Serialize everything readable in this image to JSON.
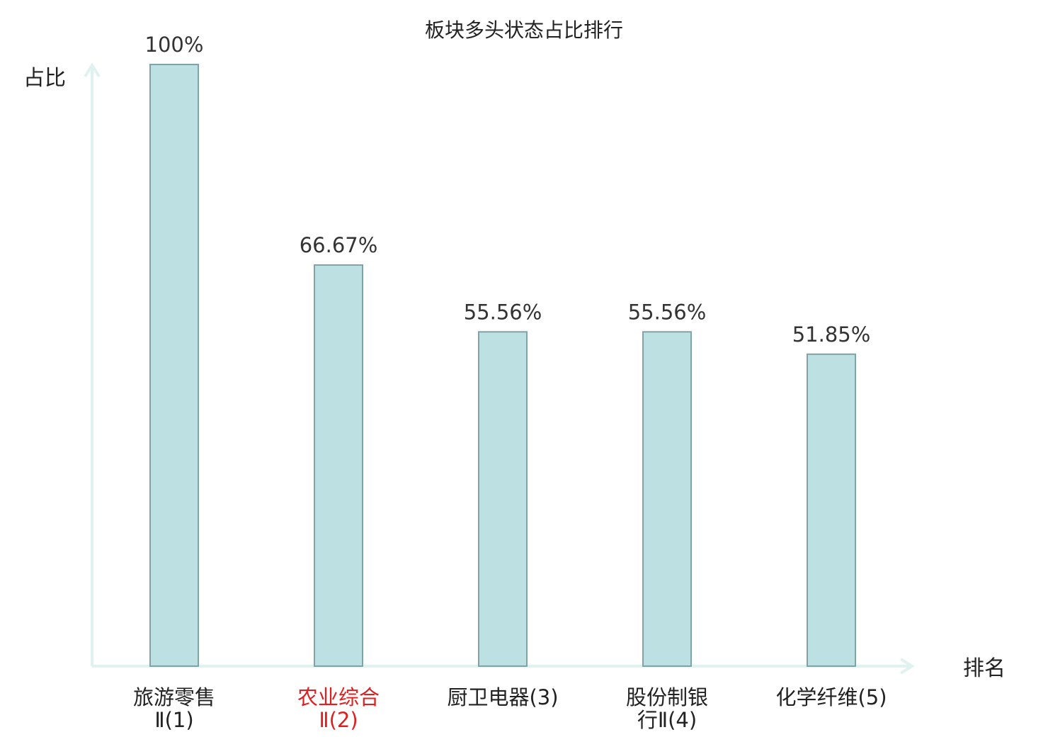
{
  "chart_data": {
    "type": "bar",
    "title": "板块多头状态占比排行",
    "ylabel": "占比",
    "xlabel": "排名",
    "categories": [
      {
        "lines": [
          "旅游零售",
          "Ⅱ(1)"
        ],
        "rank_suffix_line": 1,
        "highlight": false
      },
      {
        "lines": [
          "农业综合",
          "Ⅱ(2)"
        ],
        "rank_suffix_line": 1,
        "highlight": true
      },
      {
        "lines": [
          "厨卫电器(3)"
        ],
        "rank_suffix_line": 0,
        "highlight": false
      },
      {
        "lines": [
          "股份制银",
          "行Ⅱ(4)"
        ],
        "rank_suffix_line": 1,
        "highlight": false
      },
      {
        "lines": [
          "化学纤维(5)"
        ],
        "rank_suffix_line": 0,
        "highlight": false
      }
    ],
    "values": [
      100,
      66.67,
      55.56,
      55.56,
      51.85
    ],
    "value_labels": [
      "100%",
      "66.67%",
      "55.56%",
      "55.56%",
      "51.85%"
    ],
    "ylim": [
      0,
      100
    ],
    "grid": false,
    "legend": "none",
    "colors": {
      "bar_fill": "#bde0e2",
      "bar_stroke": "#7fa3a6",
      "axis": "#dff2ef",
      "highlight": "#e02020"
    }
  }
}
